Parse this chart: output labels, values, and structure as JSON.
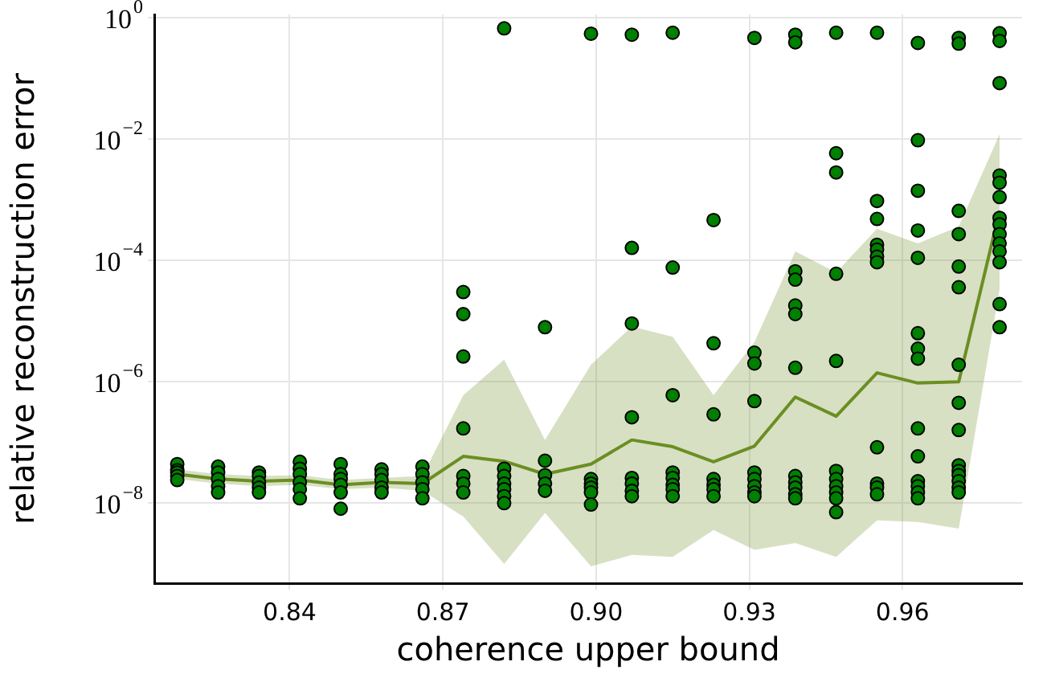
{
  "chart_data": {
    "type": "scatter",
    "xlabel": "coherence upper bound",
    "ylabel": "relative reconstruction error",
    "xlim": [
      0.8135,
      0.9834
    ],
    "ylim": [
      4.8e-10,
      1.12
    ],
    "xticks": [
      0.84,
      0.87,
      {
        "value": 0.9,
        "label": "0.90"
      },
      0.93,
      0.96
    ],
    "yticks": [
      {
        "value": 1e-08,
        "label": "10$^{−8}$"
      },
      {
        "value": 1e-06,
        "label": "10$^{−6}$"
      },
      {
        "value": 0.0001,
        "label": "10$^{−4}$"
      },
      {
        "value": 0.01,
        "label": "10$^{−2}$"
      },
      {
        "value": 1,
        "label": "10$^{0}$"
      }
    ],
    "log": "y",
    "grid": true,
    "series": [
      {
        "type": "line",
        "marker": "none",
        "color": "#6b8e23",
        "x": [
          0.818,
          0.826,
          0.834,
          0.842,
          0.85,
          0.858,
          0.866,
          0.874,
          0.882,
          0.89,
          0.899,
          0.907,
          0.915,
          0.923,
          0.931,
          0.939,
          0.947,
          0.955,
          0.963,
          0.971,
          0.979
        ],
        "values": [
          3e-08,
          2.5e-08,
          2.3e-08,
          2.4e-08,
          2e-08,
          2.2e-08,
          2.1e-08,
          5.9e-08,
          4.9e-08,
          3e-08,
          4.4e-08,
          1.1e-07,
          8.5e-08,
          4.8e-08,
          8.7e-08,
          5.6e-07,
          2.7e-07,
          1.4e-06,
          9.5e-07,
          1e-06,
          0.00065
        ],
        "upper": [
          3.6e-08,
          3e-08,
          2.8e-08,
          2.9e-08,
          2.4e-08,
          2.6e-08,
          2.8e-08,
          6e-07,
          2.3e-06,
          1.1e-07,
          1.9e-06,
          8.1e-06,
          5.5e-06,
          6e-07,
          4.5e-06,
          0.00014,
          6.3e-05,
          0.00033,
          0.00019,
          0.00036,
          0.012
        ],
        "lower": [
          2.5e-08,
          2.1e-08,
          1.9e-08,
          2e-08,
          1.7e-08,
          1.8e-08,
          1.6e-08,
          6e-09,
          1e-09,
          6.9e-09,
          9.1e-10,
          1.4e-09,
          1.3e-09,
          3.6e-09,
          1.7e-09,
          2.2e-09,
          1.3e-09,
          5.2e-09,
          4.9e-09,
          3.8e-09,
          3.4e-05
        ]
      },
      {
        "type": "scatter",
        "marker": "circle",
        "color": "#008000",
        "x": [
          0.818,
          0.818,
          0.818,
          0.818,
          0.818,
          0.826,
          0.826,
          0.826,
          0.826,
          0.826,
          0.834,
          0.834,
          0.834,
          0.834,
          0.834,
          0.842,
          0.842,
          0.842,
          0.842,
          0.842,
          0.842,
          0.85,
          0.85,
          0.85,
          0.85,
          0.85,
          0.85,
          0.858,
          0.858,
          0.858,
          0.858,
          0.858,
          0.866,
          0.866,
          0.866,
          0.866,
          0.866,
          0.874,
          0.874,
          0.874,
          0.874,
          0.874,
          0.874,
          0.874,
          0.882,
          0.882,
          0.882,
          0.882,
          0.882,
          0.882,
          0.882,
          0.89,
          0.89,
          0.89,
          0.89,
          0.89,
          0.899,
          0.899,
          0.899,
          0.899,
          0.899,
          0.899,
          0.907,
          0.907,
          0.907,
          0.907,
          0.907,
          0.907,
          0.907,
          0.907,
          0.915,
          0.915,
          0.915,
          0.915,
          0.915,
          0.915,
          0.915,
          0.915,
          0.923,
          0.923,
          0.923,
          0.923,
          0.923,
          0.923,
          0.923,
          0.931,
          0.931,
          0.931,
          0.931,
          0.931,
          0.931,
          0.931,
          0.931,
          0.931,
          0.939,
          0.939,
          0.939,
          0.939,
          0.939,
          0.939,
          0.939,
          0.939,
          0.939,
          0.939,
          0.939,
          0.939,
          0.947,
          0.947,
          0.947,
          0.947,
          0.947,
          0.947,
          0.947,
          0.947,
          0.947,
          0.947,
          0.947,
          0.955,
          0.955,
          0.955,
          0.955,
          0.955,
          0.955,
          0.955,
          0.955,
          0.955,
          0.955,
          0.955,
          0.963,
          0.963,
          0.963,
          0.963,
          0.963,
          0.963,
          0.963,
          0.963,
          0.963,
          0.963,
          0.963,
          0.963,
          0.963,
          0.963,
          0.971,
          0.971,
          0.971,
          0.971,
          0.971,
          0.971,
          0.971,
          0.971,
          0.971,
          0.971,
          0.971,
          0.971,
          0.971,
          0.971,
          0.971,
          0.979,
          0.979,
          0.979,
          0.979,
          0.979,
          0.979,
          0.979,
          0.979,
          0.979,
          0.979,
          0.979,
          0.979,
          0.979,
          0.979
        ],
        "values": [
          4.4e-08,
          3.5e-08,
          3.2e-08,
          2.8e-08,
          2.4e-08,
          4e-08,
          3.2e-08,
          2.5e-08,
          1.9e-08,
          1.5e-08,
          3.2e-08,
          2.8e-08,
          2.2e-08,
          1.8e-08,
          1.5e-08,
          4.8e-08,
          3.7e-08,
          3e-08,
          2.2e-08,
          1.7e-08,
          1.2e-08,
          4.4e-08,
          3e-08,
          2.5e-08,
          2e-08,
          1.5e-08,
          8.1e-09,
          3.6e-08,
          3e-08,
          2.4e-08,
          1.8e-08,
          1.5e-08,
          4e-08,
          3e-08,
          2.2e-08,
          1.7e-08,
          1.2e-08,
          3e-05,
          1.3e-05,
          2.6e-06,
          1.7e-07,
          2.8e-08,
          2.1e-08,
          1.5e-08,
          0.66,
          3.7e-08,
          2.8e-08,
          2.1e-08,
          1.7e-08,
          1.3e-08,
          1e-08,
          7.9e-06,
          5e-08,
          2.9e-08,
          2.1e-08,
          1.6e-08,
          0.54,
          2.5e-08,
          2.1e-08,
          1.8e-08,
          1.5e-08,
          9.5e-09,
          0.52,
          0.00016,
          9.1e-06,
          2.6e-07,
          2.6e-08,
          2.1e-08,
          1.6e-08,
          1.3e-08,
          0.56,
          7.6e-05,
          6e-07,
          3.2e-08,
          2.6e-08,
          2e-08,
          1.7e-08,
          1.3e-08,
          0.00046,
          4.3e-06,
          2.9e-07,
          2.5e-08,
          2e-08,
          1.7e-08,
          1.3e-08,
          0.46,
          3e-06,
          2e-06,
          4.8e-07,
          3.2e-08,
          2.5e-08,
          1.9e-08,
          1.5e-08,
          1.3e-08,
          0.52,
          0.39,
          6.6e-05,
          4.8e-05,
          1.8e-05,
          1.3e-05,
          1.7e-06,
          2.8e-08,
          2.2e-08,
          1.8e-08,
          1.4e-08,
          1.2e-08,
          0.56,
          0.0058,
          0.0028,
          6e-05,
          2.2e-06,
          3.4e-08,
          2.5e-08,
          1.9e-08,
          1.5e-08,
          1.2e-08,
          7.1e-09,
          0.56,
          0.00095,
          0.00048,
          0.00018,
          0.00015,
          0.000115,
          9.3e-05,
          8.3e-08,
          2.1e-08,
          1.8e-08,
          1.4e-08,
          0.38,
          0.0095,
          0.0014,
          0.00031,
          0.00011,
          6.3e-06,
          3.5e-06,
          2.4e-06,
          1.7e-07,
          5.9e-08,
          2.3e-08,
          1.9e-08,
          1.5e-08,
          1.2e-08,
          0.46,
          0.37,
          0.00065,
          0.00027,
          7.9e-05,
          3.6e-05,
          1.9e-06,
          4.5e-07,
          1.6e-07,
          4.2e-08,
          3.4e-08,
          2.9e-08,
          2.3e-08,
          1.8e-08,
          1.5e-08,
          0.55,
          0.41,
          0.083,
          0.0025,
          0.0019,
          0.0011,
          0.0005,
          0.00039,
          0.00027,
          0.00019,
          0.00014,
          9.3e-05,
          1.9e-05,
          7.9e-06
        ]
      }
    ]
  }
}
